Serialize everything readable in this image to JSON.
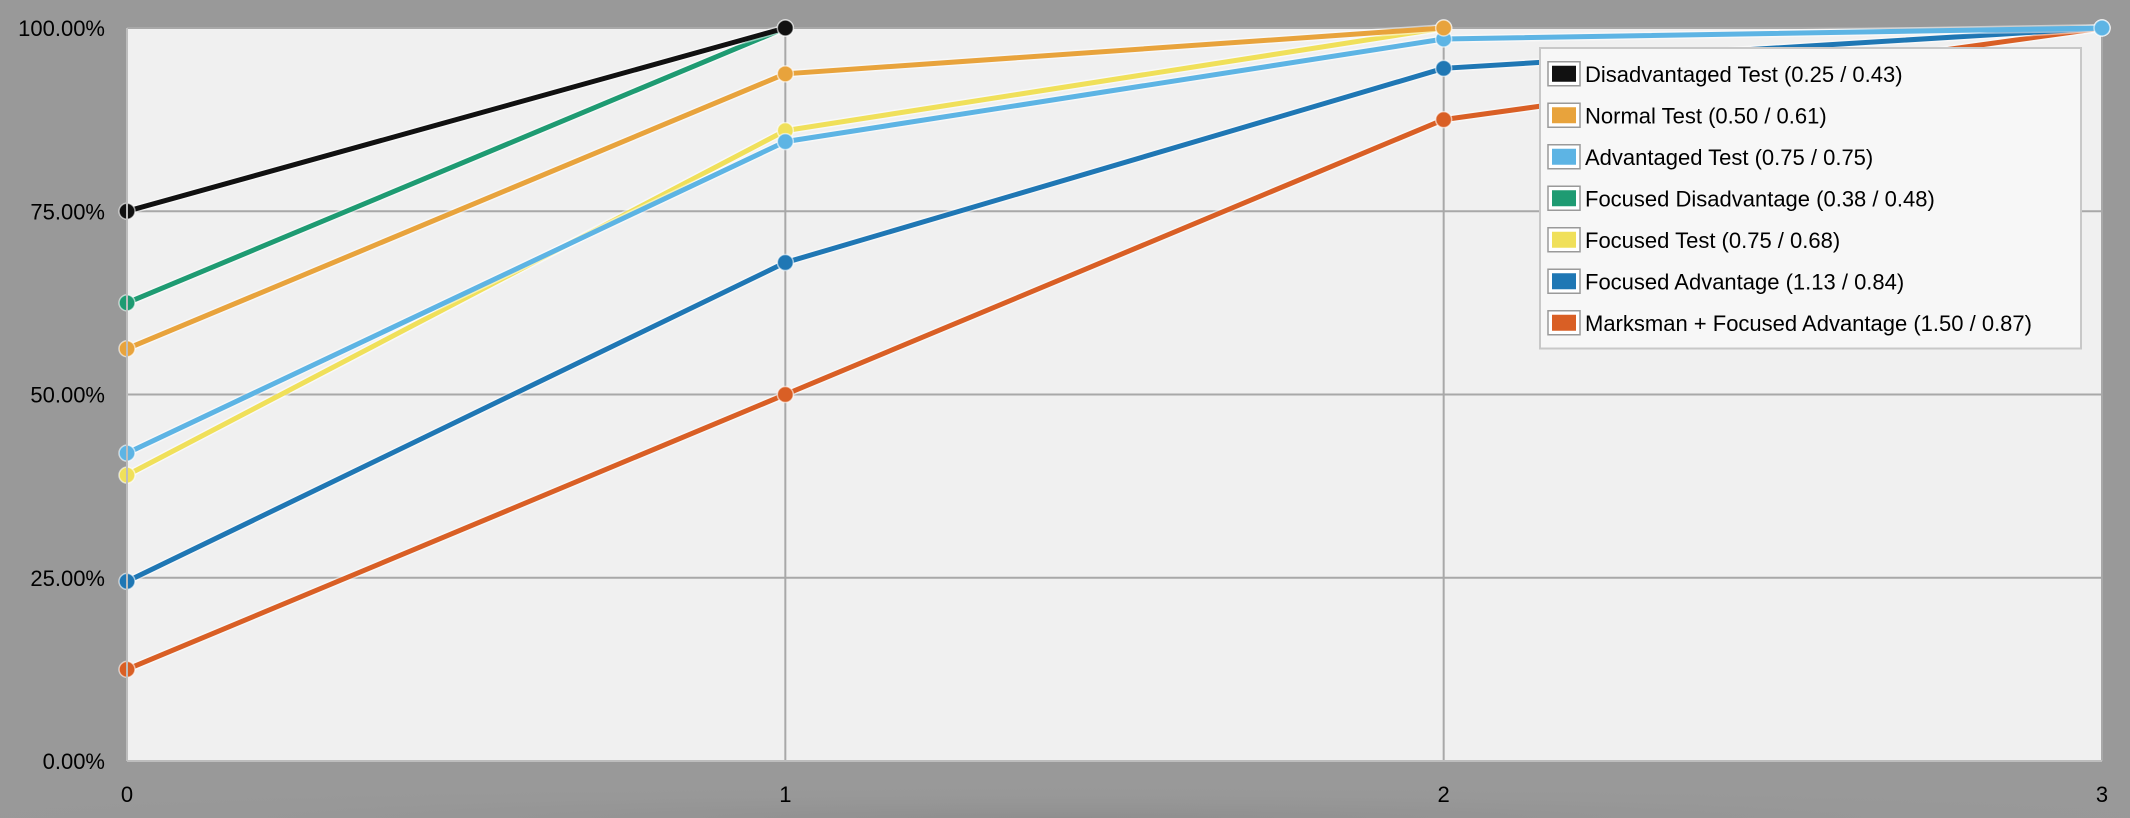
{
  "chart_data": {
    "type": "line",
    "title": "",
    "xlabel": "",
    "ylabel": "",
    "x": [
      0,
      1,
      2,
      3
    ],
    "x_tick_labels": [
      "0",
      "1",
      "2",
      "3"
    ],
    "xlim": [
      0,
      3
    ],
    "ylim": [
      0,
      1
    ],
    "y_ticks": [
      0,
      0.25,
      0.5,
      0.75,
      1.0
    ],
    "y_tick_labels": [
      "0.00%",
      "25.00%",
      "50.00%",
      "75.00%",
      "100.00%"
    ],
    "grid": true,
    "legend_position": "top-right",
    "series": [
      {
        "name": "Disadvantaged Test (0.25 / 0.43)",
        "color": "#111111",
        "x": [
          0,
          1
        ],
        "values": [
          0.75,
          1.0
        ]
      },
      {
        "name": "Normal Test (0.50 / 0.61)",
        "color": "#E8A33C",
        "x": [
          0,
          1,
          2
        ],
        "values": [
          0.5625,
          0.9375,
          1.0
        ]
      },
      {
        "name": "Advantaged Test (0.75 / 0.75)",
        "color": "#5DB4E4",
        "x": [
          0,
          1,
          2,
          3
        ],
        "values": [
          0.42,
          0.845,
          0.985,
          1.0
        ]
      },
      {
        "name": "Focused Disadvantage (0.38 / 0.48)",
        "color": "#1E9B72",
        "x": [
          0,
          1
        ],
        "values": [
          0.625,
          1.0
        ]
      },
      {
        "name": "Focused Test (0.75 / 0.68)",
        "color": "#F0E05A",
        "x": [
          0,
          1,
          2
        ],
        "values": [
          0.39,
          0.86,
          1.0
        ]
      },
      {
        "name": "Focused Advantage (1.13 / 0.84)",
        "color": "#1F77B4",
        "x": [
          0,
          1,
          2,
          3
        ],
        "values": [
          0.245,
          0.68,
          0.945,
          1.0
        ]
      },
      {
        "name": "Marksman + Focused Advantage (1.50 / 0.87)",
        "color": "#D95F25",
        "x": [
          0,
          1,
          2,
          3
        ],
        "values": [
          0.125,
          0.5,
          0.875,
          1.0
        ]
      }
    ]
  }
}
